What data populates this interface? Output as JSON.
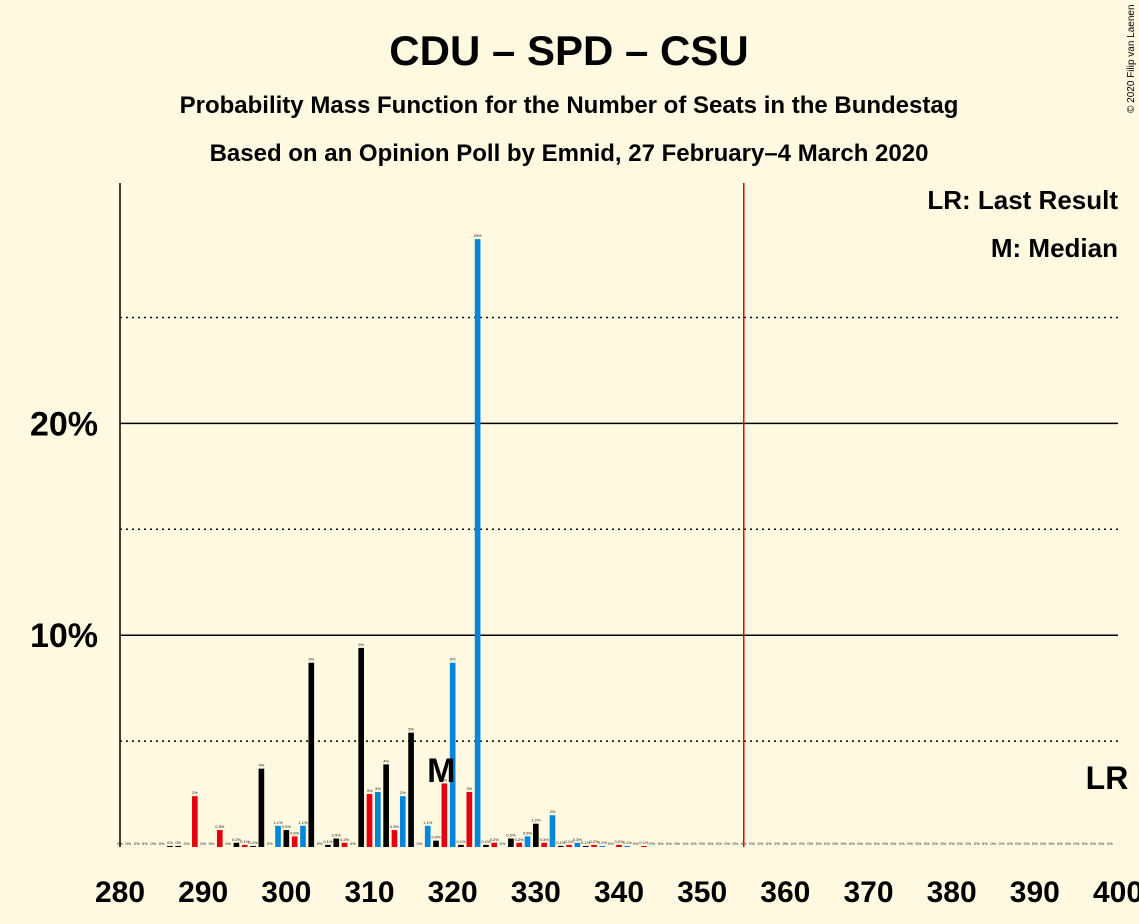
{
  "chart_data": {
    "type": "bar",
    "title": "CDU – SPD – CSU",
    "subtitle": "Probability Mass Function for the Number of Seats in the Bundestag",
    "subtitle2": "Based on an Opinion Poll by Emnid, 27 February–4 March 2020",
    "copyright": "© 2020 Filip van Laenen",
    "legend": {
      "lr": "LR: Last Result",
      "median": "M: Median",
      "placement": "top-right"
    },
    "last_result_label": "LR",
    "median_label": "M",
    "median_seat": 319,
    "majority_line_seat": 355,
    "last_result_seat": 399,
    "xlim": [
      280,
      400
    ],
    "ylim": [
      0,
      31
    ],
    "y_ticks": [
      {
        "value": 10,
        "label": "10%"
      },
      {
        "value": 20,
        "label": "20%"
      }
    ],
    "y_dotted_lines": [
      5,
      15,
      25
    ],
    "x_ticks": [
      {
        "value": 280,
        "label": "280"
      },
      {
        "value": 290,
        "label": "290"
      },
      {
        "value": 300,
        "label": "300"
      },
      {
        "value": 310,
        "label": "310"
      },
      {
        "value": 320,
        "label": "320"
      },
      {
        "value": 330,
        "label": "330"
      },
      {
        "value": 340,
        "label": "340"
      },
      {
        "value": 350,
        "label": "350"
      },
      {
        "value": 360,
        "label": "360"
      },
      {
        "value": 370,
        "label": "370"
      },
      {
        "value": 380,
        "label": "380"
      },
      {
        "value": 390,
        "label": "390"
      },
      {
        "value": 400,
        "label": "400"
      }
    ],
    "colors": {
      "black": "#000000",
      "red": "#E3000F",
      "blue": "#0087DC",
      "majority_line": "#E3000F"
    },
    "seats": [
      {
        "x": 280,
        "value": 0,
        "color": "black",
        "label": "0%"
      },
      {
        "x": 281,
        "value": 0,
        "color": "black",
        "label": "0%"
      },
      {
        "x": 282,
        "value": 0,
        "color": "black",
        "label": "0%"
      },
      {
        "x": 283,
        "value": 0,
        "color": "black",
        "label": "0%"
      },
      {
        "x": 284,
        "value": 0,
        "color": "black",
        "label": "0%"
      },
      {
        "x": 285,
        "value": 0,
        "color": "black",
        "label": "0%"
      },
      {
        "x": 286,
        "value": 0.05,
        "color": "black",
        "label": "0%"
      },
      {
        "x": 287,
        "value": 0.05,
        "color": "black",
        "label": "0%"
      },
      {
        "x": 288,
        "value": 0,
        "color": "black",
        "label": "0%"
      },
      {
        "x": 289,
        "value": 2.4,
        "color": "red",
        "label": "2%"
      },
      {
        "x": 290,
        "value": 0,
        "color": "black",
        "label": "0%"
      },
      {
        "x": 291,
        "value": 0,
        "color": "black",
        "label": "0%"
      },
      {
        "x": 292,
        "value": 0.8,
        "color": "red",
        "label": "0.8%"
      },
      {
        "x": 293,
        "value": 0,
        "color": "black",
        "label": "0%"
      },
      {
        "x": 294,
        "value": 0.2,
        "color": "black",
        "label": "0.2%"
      },
      {
        "x": 295,
        "value": 0.1,
        "color": "red",
        "label": "0.1%"
      },
      {
        "x": 296,
        "value": 0.05,
        "color": "black",
        "label": "0.1%"
      },
      {
        "x": 297,
        "value": 3.7,
        "color": "black",
        "label": "4%"
      },
      {
        "x": 298,
        "value": 0,
        "color": "black",
        "label": "0%"
      },
      {
        "x": 299,
        "value": 1.0,
        "color": "blue",
        "label": "1.1%"
      },
      {
        "x": 300,
        "value": 0.8,
        "color": "black",
        "label": "0.9%"
      },
      {
        "x": 301,
        "value": 0.5,
        "color": "red",
        "label": "0.6%"
      },
      {
        "x": 302,
        "value": 1.0,
        "color": "blue",
        "label": "1.1%"
      },
      {
        "x": 303,
        "value": 8.7,
        "color": "black",
        "label": "9%"
      },
      {
        "x": 304,
        "value": 0,
        "color": "black",
        "label": "0%"
      },
      {
        "x": 305,
        "value": 0.1,
        "color": "black",
        "label": "0.1%"
      },
      {
        "x": 306,
        "value": 0.4,
        "color": "black",
        "label": "0.5%"
      },
      {
        "x": 307,
        "value": 0.2,
        "color": "red",
        "label": "0.2%"
      },
      {
        "x": 308,
        "value": 0,
        "color": "black",
        "label": "0%"
      },
      {
        "x": 309,
        "value": 9.4,
        "color": "black",
        "label": "9%"
      },
      {
        "x": 310,
        "value": 2.5,
        "color": "red",
        "label": "3%"
      },
      {
        "x": 311,
        "value": 2.6,
        "color": "blue",
        "label": "3%"
      },
      {
        "x": 312,
        "value": 3.9,
        "color": "black",
        "label": "4%"
      },
      {
        "x": 313,
        "value": 0.8,
        "color": "red",
        "label": "0.9%"
      },
      {
        "x": 314,
        "value": 2.4,
        "color": "blue",
        "label": "2%"
      },
      {
        "x": 315,
        "value": 5.4,
        "color": "black",
        "label": "5%"
      },
      {
        "x": 316,
        "value": 0,
        "color": "black",
        "label": "0%"
      },
      {
        "x": 317,
        "value": 1.0,
        "color": "blue",
        "label": "1.1%"
      },
      {
        "x": 318,
        "value": 0.3,
        "color": "black",
        "label": "0.4%"
      },
      {
        "x": 319,
        "value": 3.0,
        "color": "red",
        "label": "3%"
      },
      {
        "x": 320,
        "value": 8.7,
        "color": "blue",
        "label": "9%"
      },
      {
        "x": 321,
        "value": 0.1,
        "color": "black",
        "label": "0.1%"
      },
      {
        "x": 322,
        "value": 2.6,
        "color": "red",
        "label": "3%"
      },
      {
        "x": 323,
        "value": 28.7,
        "color": "blue",
        "label": "29%"
      },
      {
        "x": 324,
        "value": 0.1,
        "color": "black",
        "label": "0.1%"
      },
      {
        "x": 325,
        "value": 0.2,
        "color": "red",
        "label": "0.2%"
      },
      {
        "x": 326,
        "value": 0,
        "color": "black",
        "label": "0%"
      },
      {
        "x": 327,
        "value": 0.4,
        "color": "black",
        "label": "0.5%"
      },
      {
        "x": 328,
        "value": 0.2,
        "color": "red",
        "label": "0.2%"
      },
      {
        "x": 329,
        "value": 0.5,
        "color": "blue",
        "label": "0.6%"
      },
      {
        "x": 330,
        "value": 1.1,
        "color": "black",
        "label": "1.2%"
      },
      {
        "x": 331,
        "value": 0.2,
        "color": "red",
        "label": "0.3%"
      },
      {
        "x": 332,
        "value": 1.5,
        "color": "blue",
        "label": "2%"
      },
      {
        "x": 333,
        "value": 0.05,
        "color": "black",
        "label": "0.1%"
      },
      {
        "x": 334,
        "value": 0.1,
        "color": "red",
        "label": "0.1%"
      },
      {
        "x": 335,
        "value": 0.2,
        "color": "blue",
        "label": "0.3%"
      },
      {
        "x": 336,
        "value": 0.05,
        "color": "black",
        "label": "0.1%"
      },
      {
        "x": 337,
        "value": 0.1,
        "color": "red",
        "label": "0.2%"
      },
      {
        "x": 338,
        "value": 0.05,
        "color": "blue",
        "label": "0.1%"
      },
      {
        "x": 339,
        "value": 0,
        "color": "black",
        "label": "0%"
      },
      {
        "x": 340,
        "value": 0.1,
        "color": "red",
        "label": "0.2%"
      },
      {
        "x": 341,
        "value": 0.05,
        "color": "blue",
        "label": "0.1%"
      },
      {
        "x": 342,
        "value": 0,
        "color": "black",
        "label": "0%"
      },
      {
        "x": 343,
        "value": 0.05,
        "color": "red",
        "label": "0.1%"
      },
      {
        "x": 344,
        "value": 0,
        "color": "black",
        "label": "0%"
      },
      {
        "x": 345,
        "value": 0,
        "color": "black",
        "label": "0%"
      },
      {
        "x": 346,
        "value": 0,
        "color": "black",
        "label": "0%"
      },
      {
        "x": 347,
        "value": 0,
        "color": "black",
        "label": "0%"
      },
      {
        "x": 348,
        "value": 0,
        "color": "black",
        "label": "0%"
      },
      {
        "x": 349,
        "value": 0,
        "color": "black",
        "label": "0%"
      },
      {
        "x": 350,
        "value": 0,
        "color": "black",
        "label": "0%"
      },
      {
        "x": 351,
        "value": 0,
        "color": "black",
        "label": "0%"
      },
      {
        "x": 352,
        "value": 0,
        "color": "black",
        "label": "0%"
      },
      {
        "x": 353,
        "value": 0,
        "color": "black",
        "label": "0%"
      },
      {
        "x": 354,
        "value": 0,
        "color": "black",
        "label": "0%"
      },
      {
        "x": 355,
        "value": 0,
        "color": "black",
        "label": "0%"
      },
      {
        "x": 356,
        "value": 0,
        "color": "black",
        "label": "0%"
      },
      {
        "x": 357,
        "value": 0,
        "color": "black",
        "label": "0%"
      },
      {
        "x": 358,
        "value": 0,
        "color": "black",
        "label": "0%"
      },
      {
        "x": 359,
        "value": 0,
        "color": "black",
        "label": "0%"
      },
      {
        "x": 360,
        "value": 0,
        "color": "black",
        "label": "0%"
      },
      {
        "x": 361,
        "value": 0,
        "color": "black",
        "label": "0%"
      },
      {
        "x": 362,
        "value": 0,
        "color": "black",
        "label": "0%"
      },
      {
        "x": 363,
        "value": 0,
        "color": "black",
        "label": "0%"
      },
      {
        "x": 364,
        "value": 0,
        "color": "black",
        "label": "0%"
      },
      {
        "x": 365,
        "value": 0,
        "color": "black",
        "label": "0%"
      },
      {
        "x": 366,
        "value": 0,
        "color": "black",
        "label": "0%"
      },
      {
        "x": 367,
        "value": 0,
        "color": "black",
        "label": "0%"
      },
      {
        "x": 368,
        "value": 0,
        "color": "black",
        "label": "0%"
      },
      {
        "x": 369,
        "value": 0,
        "color": "black",
        "label": "0%"
      },
      {
        "x": 370,
        "value": 0,
        "color": "black",
        "label": "0%"
      },
      {
        "x": 371,
        "value": 0,
        "color": "black",
        "label": "0%"
      },
      {
        "x": 372,
        "value": 0,
        "color": "black",
        "label": "0%"
      },
      {
        "x": 373,
        "value": 0,
        "color": "black",
        "label": "0%"
      },
      {
        "x": 374,
        "value": 0,
        "color": "black",
        "label": "0%"
      },
      {
        "x": 375,
        "value": 0,
        "color": "black",
        "label": "0%"
      },
      {
        "x": 376,
        "value": 0,
        "color": "black",
        "label": "0%"
      },
      {
        "x": 377,
        "value": 0,
        "color": "black",
        "label": "0%"
      },
      {
        "x": 378,
        "value": 0,
        "color": "black",
        "label": "0%"
      },
      {
        "x": 379,
        "value": 0,
        "color": "black",
        "label": "0%"
      },
      {
        "x": 380,
        "value": 0,
        "color": "black",
        "label": "0%"
      },
      {
        "x": 381,
        "value": 0,
        "color": "black",
        "label": "0%"
      },
      {
        "x": 382,
        "value": 0,
        "color": "black",
        "label": "0%"
      },
      {
        "x": 383,
        "value": 0,
        "color": "black",
        "label": "0%"
      },
      {
        "x": 384,
        "value": 0,
        "color": "black",
        "label": "0%"
      },
      {
        "x": 385,
        "value": 0,
        "color": "black",
        "label": "0%"
      },
      {
        "x": 386,
        "value": 0,
        "color": "black",
        "label": "0%"
      },
      {
        "x": 387,
        "value": 0,
        "color": "black",
        "label": "0%"
      },
      {
        "x": 388,
        "value": 0,
        "color": "black",
        "label": "0%"
      },
      {
        "x": 389,
        "value": 0,
        "color": "black",
        "label": "0%"
      },
      {
        "x": 390,
        "value": 0,
        "color": "black",
        "label": "0%"
      },
      {
        "x": 391,
        "value": 0,
        "color": "black",
        "label": "0%"
      },
      {
        "x": 392,
        "value": 0,
        "color": "black",
        "label": "0%"
      },
      {
        "x": 393,
        "value": 0,
        "color": "black",
        "label": "0%"
      },
      {
        "x": 394,
        "value": 0,
        "color": "black",
        "label": "0%"
      },
      {
        "x": 395,
        "value": 0,
        "color": "black",
        "label": "0%"
      },
      {
        "x": 396,
        "value": 0,
        "color": "black",
        "label": "0%"
      },
      {
        "x": 397,
        "value": 0,
        "color": "black",
        "label": "0%"
      },
      {
        "x": 398,
        "value": 0,
        "color": "black",
        "label": "0%"
      },
      {
        "x": 399,
        "value": 0,
        "color": "black",
        "label": "0%"
      }
    ]
  }
}
